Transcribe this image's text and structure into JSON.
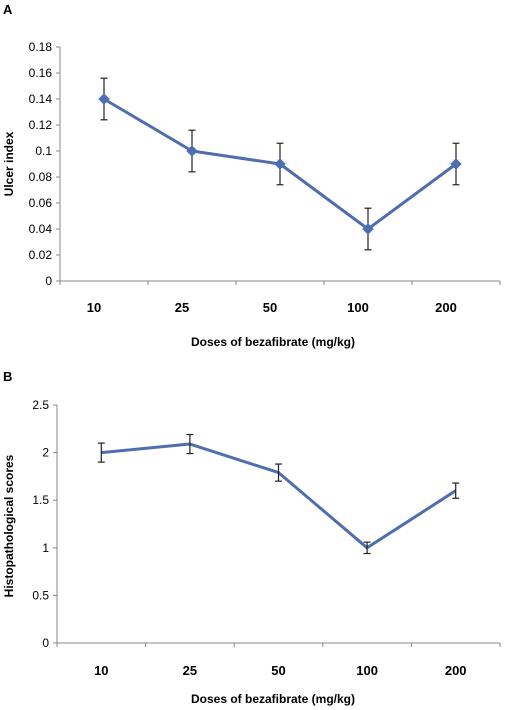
{
  "chart_data": [
    {
      "panel_label": "A",
      "type": "line",
      "categories": [
        "10",
        "25",
        "50",
        "100",
        "200"
      ],
      "values": [
        0.14,
        0.1,
        0.09,
        0.04,
        0.09
      ],
      "error": [
        0.016,
        0.016,
        0.016,
        0.016,
        0.016
      ],
      "xlabel": "Doses of bezafibrate (mg/kg)",
      "ylabel": "Ulcer index",
      "yticks": [
        "0",
        "0.02",
        "0.04",
        "0.06",
        "0.08",
        "0.1",
        "0.12",
        "0.14",
        "0.16",
        "0.18"
      ],
      "ylim": [
        0,
        0.18
      ],
      "markers": "diamond",
      "grid": false,
      "color": "#4f6eb0"
    },
    {
      "panel_label": "B",
      "type": "line",
      "categories": [
        "10",
        "25",
        "50",
        "100",
        "200"
      ],
      "values": [
        2.0,
        2.09,
        1.79,
        1.0,
        1.6
      ],
      "error": [
        0.1,
        0.1,
        0.09,
        0.06,
        0.08
      ],
      "xlabel": "Doses of bezafibrate (mg/kg)",
      "ylabel": "Histopathological scores",
      "yticks": [
        "0",
        "0.5",
        "1",
        "1.5",
        "2",
        "2.5"
      ],
      "ylim": [
        0,
        2.5
      ],
      "markers": "none",
      "grid": false,
      "color": "#4f6eb0"
    }
  ]
}
